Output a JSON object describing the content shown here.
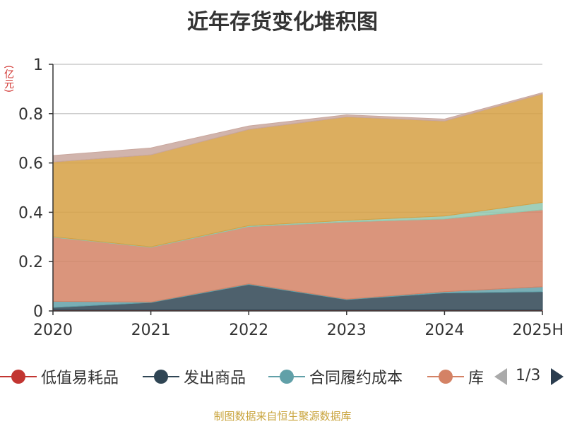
{
  "chart_data": {
    "type": "area",
    "title": "近年存货变化堆积图",
    "unit_label": "(亿元)",
    "x": [
      "2020",
      "2021",
      "2022",
      "2023",
      "2024",
      "2025H"
    ],
    "ylim": [
      0,
      1
    ],
    "yticks": [
      "0",
      "0.2",
      "0.4",
      "0.6",
      "0.8",
      "1"
    ],
    "stacked": true,
    "grid": true,
    "legend_position": "bottom",
    "series": [
      {
        "name": "低值易耗品",
        "color": "#c23531",
        "values": [
          0.004,
          0.004,
          0.004,
          0.004,
          0.004,
          0.004
        ]
      },
      {
        "name": "发出商品",
        "color": "#2f4554",
        "values": [
          0.01,
          0.03,
          0.103,
          0.042,
          0.069,
          0.074
        ]
      },
      {
        "name": "合同履约成本",
        "color": "#61a0a8",
        "values": [
          0.025,
          0.002,
          0.003,
          0.002,
          0.005,
          0.02
        ]
      },
      {
        "name": "库存商品",
        "color": "#d48265",
        "values": [
          0.26,
          0.222,
          0.232,
          0.313,
          0.295,
          0.312
        ]
      },
      {
        "name": "",
        "color": "#91c7ae",
        "values": [
          0.002,
          0.002,
          0.004,
          0.006,
          0.012,
          0.03
        ]
      },
      {
        "name": "",
        "color": "#d6a043",
        "values": [
          0.303,
          0.373,
          0.39,
          0.42,
          0.385,
          0.44
        ]
      },
      {
        "name": "",
        "color": "#c9a79e",
        "values": [
          0.026,
          0.028,
          0.014,
          0.008,
          0.008,
          0.005
        ]
      }
    ]
  },
  "legend": {
    "items": [
      "低值易耗品",
      "发出商品",
      "合同履约成本",
      "库"
    ],
    "page_text": "1/3"
  },
  "source_text": "制图数据来自恒生聚源数据库"
}
